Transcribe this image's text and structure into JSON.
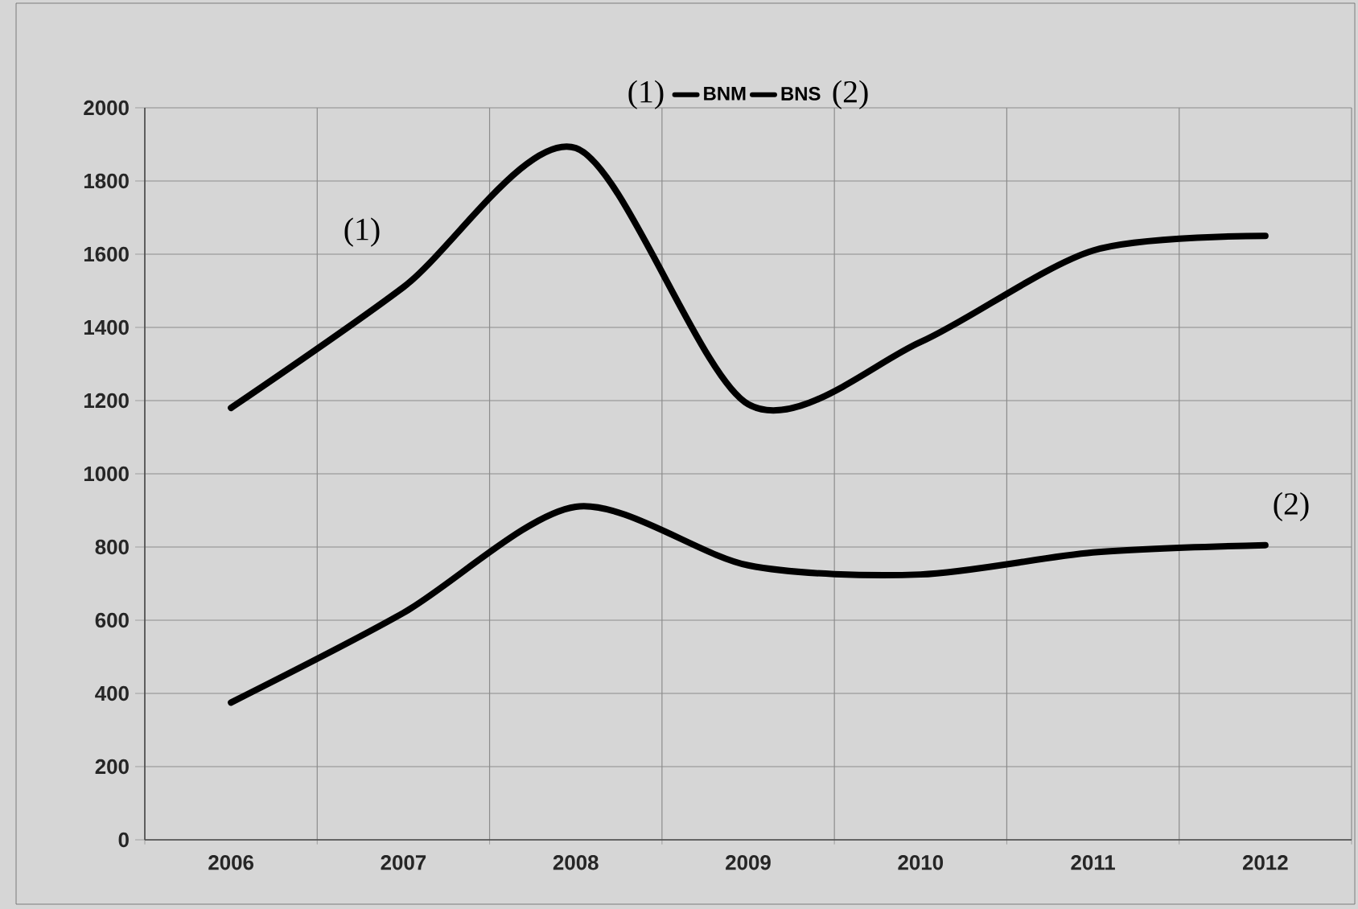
{
  "chart_data": {
    "type": "line",
    "categories": [
      "2006",
      "2007",
      "2008",
      "2009",
      "2010",
      "2011",
      "2012"
    ],
    "series": [
      {
        "name": "BNM",
        "color": "#000000",
        "values": [
          1180,
          1510,
          1890,
          1190,
          1360,
          1610,
          1650
        ]
      },
      {
        "name": "BNS",
        "color": "#000000",
        "values": [
          375,
          620,
          910,
          750,
          725,
          785,
          805
        ]
      }
    ],
    "ylim": [
      0,
      2000
    ],
    "yticks": [
      0,
      200,
      400,
      600,
      800,
      1000,
      1200,
      1400,
      1600,
      1800,
      2000
    ],
    "grid": true,
    "legend": "top",
    "annotations": [
      "(1)",
      "(2)",
      "(1)",
      "(2)"
    ]
  }
}
